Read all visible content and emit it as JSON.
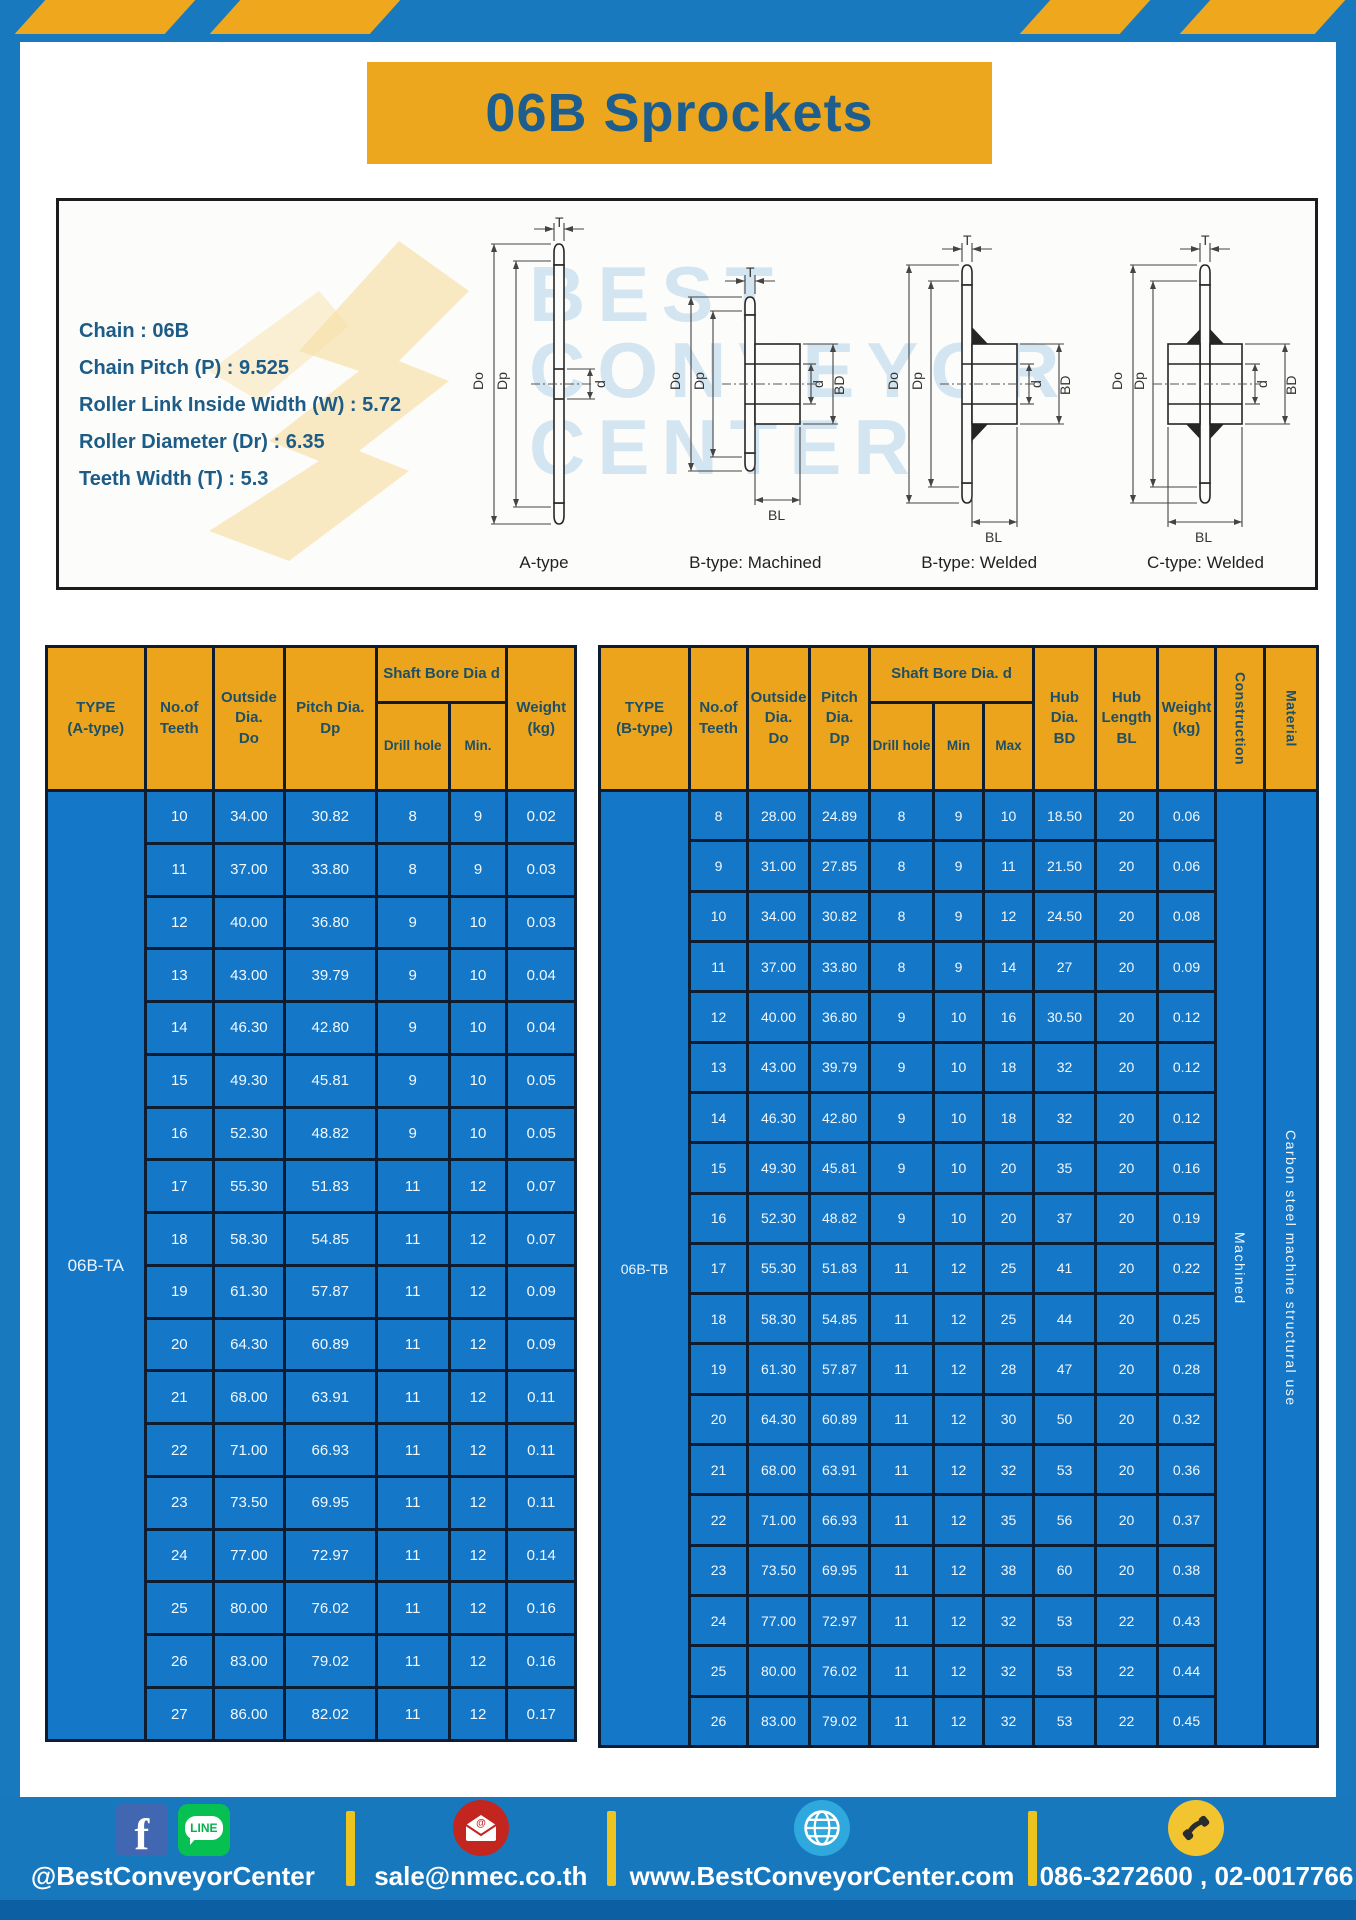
{
  "title": "06B Sprockets",
  "specs": {
    "chain": "Chain  : 06B",
    "pitch": "Chain Pitch (P)  :  9.525",
    "roller_width": "Roller Link Inside Width (W)  :  5.72",
    "roller_dia": "Roller Diameter (Dr)  : 6.35",
    "teeth_width": "Teeth Width (T)  :  5.3"
  },
  "watermark": {
    "text": "BEST\nCONVEYOR\nCENTER"
  },
  "diagrams": {
    "dims": {
      "T": "T",
      "Do": "Do",
      "Dp": "Dp",
      "d": "d",
      "BD": "BD",
      "BL": "BL"
    },
    "captions": [
      "A-type",
      "B-type: Machined",
      "B-type: Welded",
      "C-type: Welded"
    ]
  },
  "tableA": {
    "headers": {
      "type": "TYPE\n(A-type)",
      "teeth": "No.of\nTeeth",
      "outside": "Outside\nDia.\nDo",
      "pitch": "Pitch Dia.\nDp",
      "shaft": "Shaft Bore Dia d",
      "drill": "Drill hole",
      "min": "Min.",
      "weight": "Weight\n(kg)"
    },
    "lead_cells": [
      {
        "text": "06B-TA",
        "class": "type-cell",
        "name": "type-label-a"
      }
    ],
    "tail_cells": [],
    "rows": [
      [
        "10",
        "34.00",
        "30.82",
        "8",
        "9",
        "0.02"
      ],
      [
        "11",
        "37.00",
        "33.80",
        "8",
        "9",
        "0.03"
      ],
      [
        "12",
        "40.00",
        "36.80",
        "9",
        "10",
        "0.03"
      ],
      [
        "13",
        "43.00",
        "39.79",
        "9",
        "10",
        "0.04"
      ],
      [
        "14",
        "46.30",
        "42.80",
        "9",
        "10",
        "0.04"
      ],
      [
        "15",
        "49.30",
        "45.81",
        "9",
        "10",
        "0.05"
      ],
      [
        "16",
        "52.30",
        "48.82",
        "9",
        "10",
        "0.05"
      ],
      [
        "17",
        "55.30",
        "51.83",
        "11",
        "12",
        "0.07"
      ],
      [
        "18",
        "58.30",
        "54.85",
        "11",
        "12",
        "0.07"
      ],
      [
        "19",
        "61.30",
        "57.87",
        "11",
        "12",
        "0.09"
      ],
      [
        "20",
        "64.30",
        "60.89",
        "11",
        "12",
        "0.09"
      ],
      [
        "21",
        "68.00",
        "63.91",
        "11",
        "12",
        "0.11"
      ],
      [
        "22",
        "71.00",
        "66.93",
        "11",
        "12",
        "0.11"
      ],
      [
        "23",
        "73.50",
        "69.95",
        "11",
        "12",
        "0.11"
      ],
      [
        "24",
        "77.00",
        "72.97",
        "11",
        "12",
        "0.14"
      ],
      [
        "25",
        "80.00",
        "76.02",
        "11",
        "12",
        "0.16"
      ],
      [
        "26",
        "83.00",
        "79.02",
        "11",
        "12",
        "0.16"
      ],
      [
        "27",
        "86.00",
        "82.02",
        "11",
        "12",
        "0.17"
      ]
    ]
  },
  "tableB": {
    "headers": {
      "type": "TYPE\n(B-type)",
      "teeth": "No.of\nTeeth",
      "outside": "Outside\nDia.\nDo",
      "pitch": "Pitch\nDia.\nDp",
      "shaft": "Shaft Bore Dia.  d",
      "drill": "Drill hole",
      "min": "Min",
      "max": "Max",
      "hub_dia": "Hub\nDia.\nBD",
      "hub_len": "Hub\nLength\nBL",
      "weight": "Weight\n(kg)",
      "construction": "Construction",
      "material": "Material"
    },
    "lead_cells": [
      {
        "text": "06B-TB",
        "class": "type-cell",
        "name": "type-label-b"
      }
    ],
    "tail_cells": [
      {
        "text": "Machined",
        "class": "vcell",
        "name": "construction-value"
      },
      {
        "text": "Carbon  steel  machine  structural  use",
        "class": "vcell",
        "name": "material-value"
      }
    ],
    "rows": [
      [
        "8",
        "28.00",
        "24.89",
        "8",
        "9",
        "10",
        "18.50",
        "20",
        "0.06"
      ],
      [
        "9",
        "31.00",
        "27.85",
        "8",
        "9",
        "11",
        "21.50",
        "20",
        "0.06"
      ],
      [
        "10",
        "34.00",
        "30.82",
        "8",
        "9",
        "12",
        "24.50",
        "20",
        "0.08"
      ],
      [
        "11",
        "37.00",
        "33.80",
        "8",
        "9",
        "14",
        "27",
        "20",
        "0.09"
      ],
      [
        "12",
        "40.00",
        "36.80",
        "9",
        "10",
        "16",
        "30.50",
        "20",
        "0.12"
      ],
      [
        "13",
        "43.00",
        "39.79",
        "9",
        "10",
        "18",
        "32",
        "20",
        "0.12"
      ],
      [
        "14",
        "46.30",
        "42.80",
        "9",
        "10",
        "18",
        "32",
        "20",
        "0.12"
      ],
      [
        "15",
        "49.30",
        "45.81",
        "9",
        "10",
        "20",
        "35",
        "20",
        "0.16"
      ],
      [
        "16",
        "52.30",
        "48.82",
        "9",
        "10",
        "20",
        "37",
        "20",
        "0.19"
      ],
      [
        "17",
        "55.30",
        "51.83",
        "11",
        "12",
        "25",
        "41",
        "20",
        "0.22"
      ],
      [
        "18",
        "58.30",
        "54.85",
        "11",
        "12",
        "25",
        "44",
        "20",
        "0.25"
      ],
      [
        "19",
        "61.30",
        "57.87",
        "11",
        "12",
        "28",
        "47",
        "20",
        "0.28"
      ],
      [
        "20",
        "64.30",
        "60.89",
        "11",
        "12",
        "30",
        "50",
        "20",
        "0.32"
      ],
      [
        "21",
        "68.00",
        "63.91",
        "11",
        "12",
        "32",
        "53",
        "20",
        "0.36"
      ],
      [
        "22",
        "71.00",
        "66.93",
        "11",
        "12",
        "35",
        "56",
        "20",
        "0.37"
      ],
      [
        "23",
        "73.50",
        "69.95",
        "11",
        "12",
        "38",
        "60",
        "20",
        "0.38"
      ],
      [
        "24",
        "77.00",
        "72.97",
        "11",
        "12",
        "32",
        "53",
        "22",
        "0.43"
      ],
      [
        "25",
        "80.00",
        "76.02",
        "11",
        "12",
        "32",
        "53",
        "22",
        "0.44"
      ],
      [
        "26",
        "83.00",
        "79.02",
        "11",
        "12",
        "32",
        "53",
        "22",
        "0.45"
      ]
    ]
  },
  "footer": {
    "social_label": "@BestConveyorCenter",
    "line_text": "LINE",
    "email": "sale@nmec.co.th",
    "website": "www.BestConveyorCenter.com",
    "phones": "086-3272600 , 02-0017766"
  }
}
